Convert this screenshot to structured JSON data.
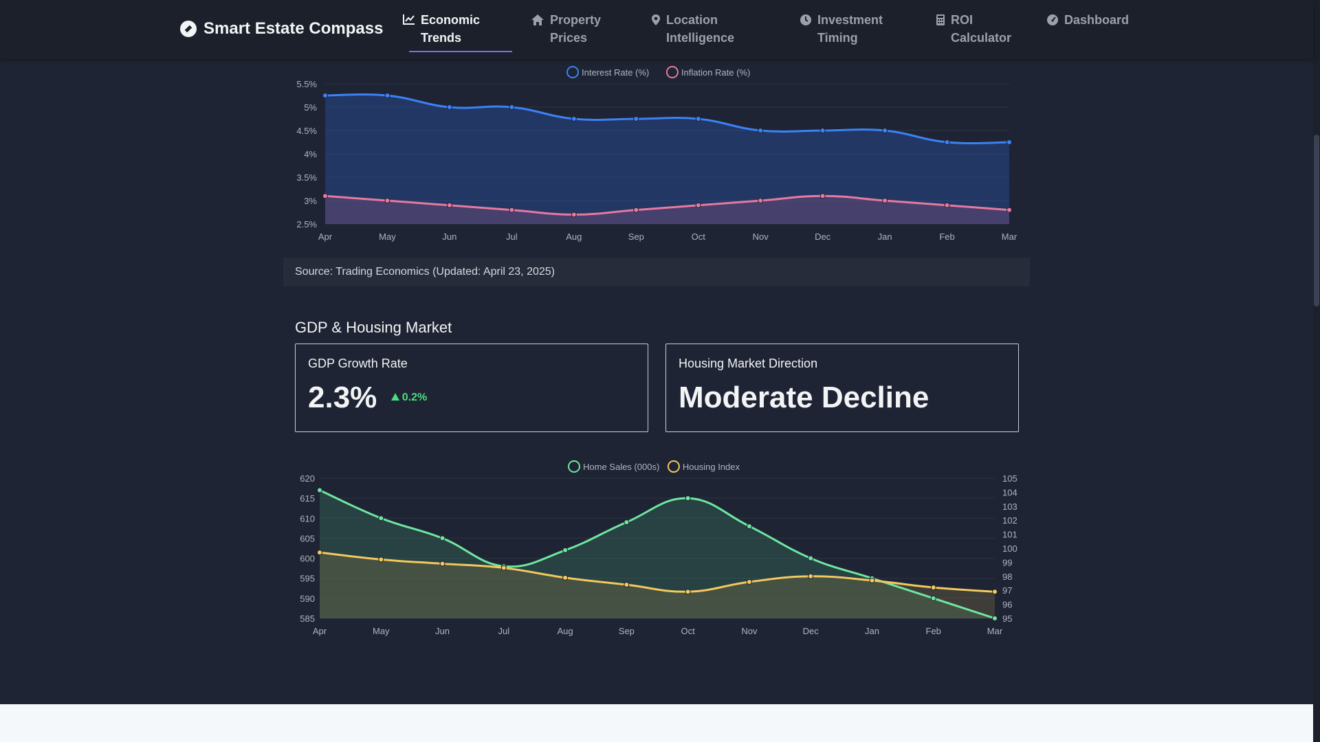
{
  "brand": {
    "name": "Smart Estate Compass",
    "icon": "compass-icon"
  },
  "nav": [
    {
      "label": "Economic Trends",
      "icon": "line-chart-icon",
      "active": true
    },
    {
      "label": "Property Prices",
      "icon": "home-icon",
      "active": false
    },
    {
      "label": "Location Intelligence",
      "icon": "map-pin-icon",
      "active": false
    },
    {
      "label": "Investment Timing",
      "icon": "clock-icon",
      "active": false
    },
    {
      "label": "ROI Calculator",
      "icon": "calculator-icon",
      "active": false
    },
    {
      "label": "Dashboard",
      "icon": "gauge-icon",
      "active": false
    }
  ],
  "source_note": "Source: Trading Economics (Updated: April 23, 2025)",
  "gdp_section": {
    "title": "GDP & Housing Market",
    "gdp_card": {
      "label": "GDP Growth Rate",
      "value": "2.3%",
      "change": "0.2%"
    },
    "housing_card": {
      "label": "Housing Market Direction",
      "value": "Moderate Decline"
    }
  },
  "colors": {
    "interest": "#3b82f6",
    "inflation": "#e879a0",
    "home_sales": "#6ee7a0",
    "housing_index": "#f4c95d",
    "accent": "#7c6cf0"
  },
  "chart_data": [
    {
      "type": "line",
      "categories": [
        "Apr",
        "May",
        "Jun",
        "Jul",
        "Aug",
        "Sep",
        "Oct",
        "Nov",
        "Dec",
        "Jan",
        "Feb",
        "Mar"
      ],
      "series": [
        {
          "name": "Interest Rate (%)",
          "values": [
            5.25,
            5.25,
            5.0,
            5.0,
            4.75,
            4.75,
            4.75,
            4.5,
            4.5,
            4.5,
            4.25,
            4.25
          ]
        },
        {
          "name": "Inflation Rate (%)",
          "values": [
            3.1,
            3.0,
            2.9,
            2.8,
            2.7,
            2.8,
            2.9,
            3.0,
            3.1,
            3.0,
            2.9,
            2.8
          ]
        }
      ],
      "ylim": [
        2.5,
        5.5
      ],
      "yticks": [
        "2.5%",
        "3%",
        "3.5%",
        "4%",
        "4.5%",
        "5%",
        "5.5%"
      ],
      "legend": "top-center",
      "grid": true,
      "area_fill": true
    },
    {
      "type": "line",
      "categories": [
        "Apr",
        "May",
        "Jun",
        "Jul",
        "Aug",
        "Sep",
        "Oct",
        "Nov",
        "Dec",
        "Jan",
        "Feb",
        "Mar"
      ],
      "series": [
        {
          "name": "Home Sales (000s)",
          "axis": "left",
          "values": [
            617,
            610,
            605,
            598,
            602,
            609,
            615,
            608,
            600,
            595,
            590,
            585
          ]
        },
        {
          "name": "Housing Index",
          "axis": "right",
          "values": [
            99.7,
            99.2,
            98.9,
            98.6,
            97.9,
            97.4,
            96.9,
            97.6,
            98.0,
            97.7,
            97.2,
            96.9
          ]
        }
      ],
      "ylim_left": [
        585,
        620
      ],
      "yticks_left": [
        "585",
        "590",
        "595",
        "600",
        "605",
        "610",
        "615",
        "620"
      ],
      "ylim_right": [
        95,
        105
      ],
      "yticks_right": [
        "95",
        "96",
        "97",
        "98",
        "99",
        "100",
        "101",
        "102",
        "103",
        "104",
        "105"
      ],
      "legend": "top-center",
      "grid": true,
      "area_fill": true
    }
  ]
}
